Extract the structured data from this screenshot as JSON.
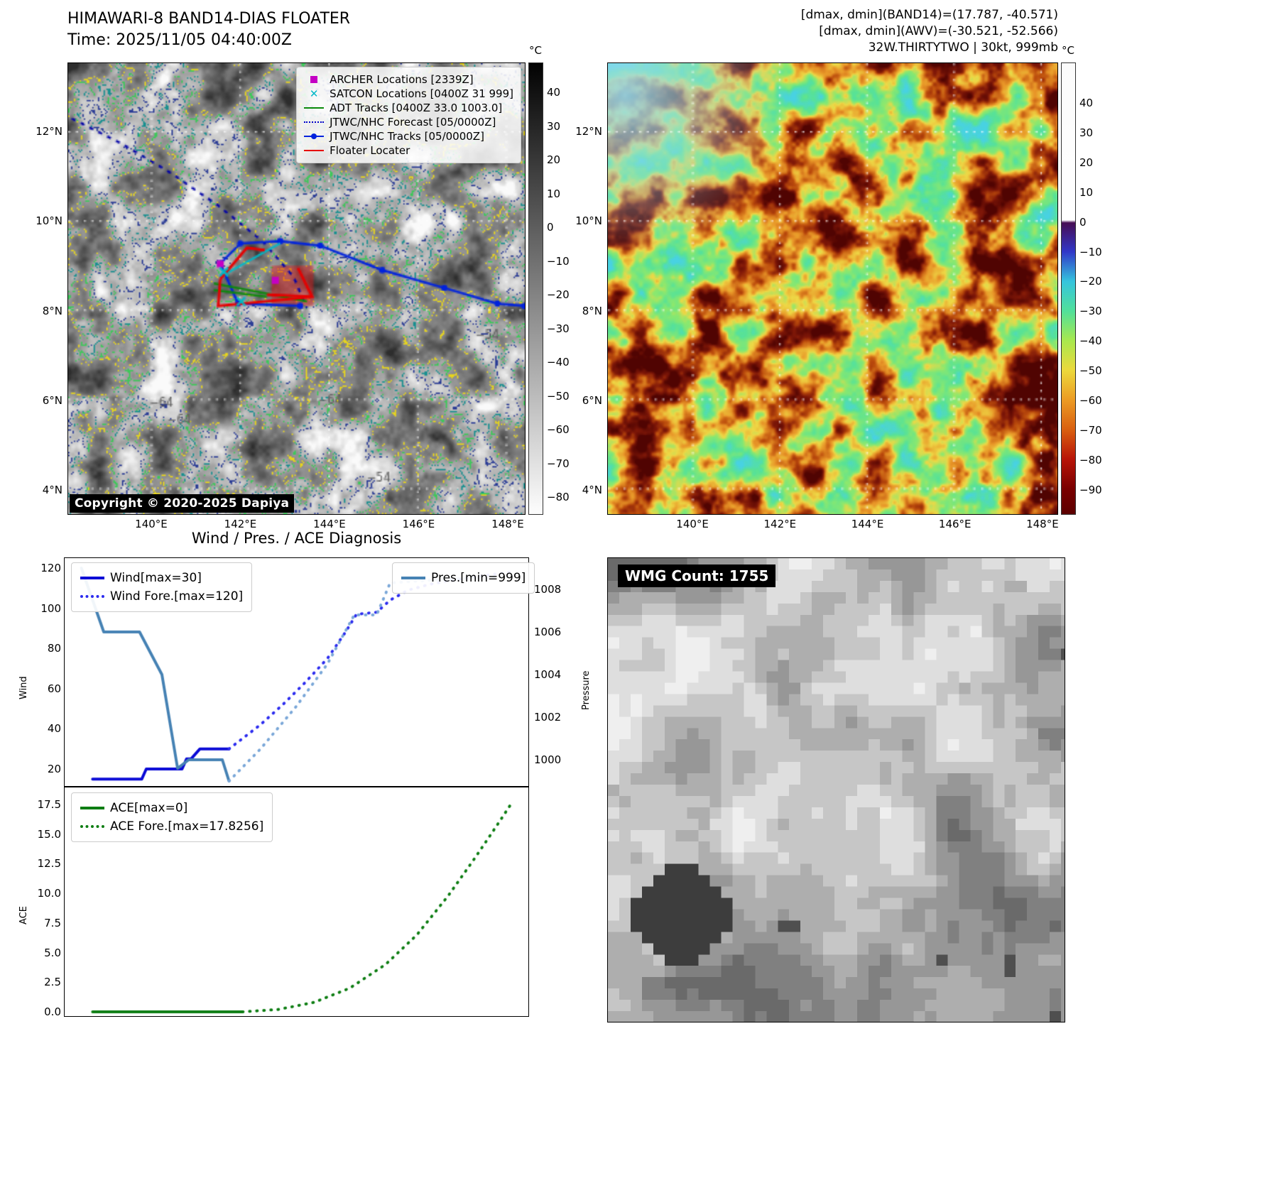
{
  "panel_band14": {
    "title": "HIMAWARI-8 BAND14-DIAS FLOATER",
    "time": "Time: 2025/11/05 04:40:00Z",
    "copyright": "Copyright © 2020-2025 Dapiya",
    "ytick_labels": [
      "12°N",
      "10°N",
      "8°N",
      "6°N",
      "4°N"
    ],
    "xtick_labels": [
      "140°E",
      "142°E",
      "144°E",
      "146°E",
      "148°E"
    ],
    "colorbar": {
      "unit": "°C",
      "ticks": [
        "40",
        "30",
        "20",
        "10",
        "0",
        "−10",
        "−20",
        "−30",
        "−40",
        "−50",
        "−60",
        "−70",
        "−80"
      ]
    },
    "legend": [
      {
        "label": "ARCHER Locations [2339Z]",
        "marker": "square",
        "color": "#c400c4"
      },
      {
        "label": "SATCON Locations [0400Z 31 999]",
        "marker": "x",
        "color": "#00b8c8"
      },
      {
        "label": "ADT Tracks [0400Z 33.0 1003.0]",
        "marker": "line",
        "color": "#0a8a0a"
      },
      {
        "label": "JTWC/NHC Forecast [05/0000Z]",
        "marker": "dotted",
        "color": "#0000c8"
      },
      {
        "label": "JTWC/NHC Tracks [05/0000Z]",
        "marker": "line-dot",
        "color": "#0022dd"
      },
      {
        "label": "Floater Locater",
        "marker": "line",
        "color": "#e60000"
      }
    ],
    "map_labels": [
      {
        "text": "−64",
        "lon": 139.95,
        "lat": 5.85
      },
      {
        "text": "−64",
        "lon": 140.35,
        "lat": 5.45
      },
      {
        "text": "−54",
        "lon": 147.3,
        "lat": 7.35
      },
      {
        "text": "−54",
        "lon": 144.85,
        "lat": 4.15
      },
      {
        "text": "−64",
        "lon": 143.75,
        "lat": 5.9
      }
    ],
    "overlays": {
      "jtwc_forecast": {
        "color": "#0000a8",
        "style": "dashed",
        "points": [
          [
            138.2,
            12.3
          ],
          [
            139.3,
            11.75
          ],
          [
            140.4,
            11.1
          ],
          [
            141.5,
            10.35
          ],
          [
            142.5,
            9.55
          ],
          [
            143.2,
            8.75
          ],
          [
            143.5,
            8.05
          ]
        ]
      },
      "jtwc_track": {
        "color": "#0022dd",
        "style": "solid-dots",
        "points": [
          [
            148.4,
            8.1
          ],
          [
            147.8,
            8.15
          ],
          [
            146.6,
            8.5
          ],
          [
            145.2,
            8.9
          ],
          [
            143.8,
            9.45
          ],
          [
            142.9,
            9.55
          ],
          [
            142.0,
            9.5
          ],
          [
            141.55,
            9.05
          ],
          [
            141.95,
            8.15
          ],
          [
            143.35,
            8.1
          ]
        ]
      },
      "adt_tracks": {
        "color": "#0a8a0a",
        "style": "solid",
        "lines": [
          [
            [
              141.4,
              8.6
            ],
            [
              143.5,
              8.2
            ]
          ],
          [
            [
              141.4,
              8.45
            ],
            [
              142.6,
              8.3
            ]
          ]
        ]
      },
      "satcon_line": {
        "color": "#00b8c8",
        "style": "solid",
        "points": [
          [
            141.55,
            8.75
          ],
          [
            142.9,
            9.5
          ]
        ]
      },
      "floater": {
        "color": "#e60000",
        "style": "solid",
        "lines": [
          [
            [
              141.55,
              8.7
            ],
            [
              141.5,
              8.1
            ],
            [
              143.6,
              8.3
            ]
          ],
          [
            [
              141.55,
              8.7
            ],
            [
              142.15,
              9.4
            ],
            [
              142.55,
              9.35
            ]
          ],
          [
            [
              143.3,
              8.95
            ],
            [
              143.62,
              8.3
            ],
            [
              142.6,
              8.35
            ]
          ]
        ],
        "fill_rect": [
          142.7,
          9.0,
          143.65,
          8.1
        ]
      },
      "archer_points": {
        "color": "#c400c4",
        "points": [
          [
            141.55,
            9.04
          ],
          [
            142.79,
            8.67
          ]
        ]
      },
      "satcon_points": {
        "color": "#00b8c8",
        "points": [
          [
            141.63,
            8.86
          ],
          [
            142.02,
            8.2
          ]
        ]
      }
    }
  },
  "panel_awv": {
    "header_lines": [
      "[dmax, dmin](BAND14)=(17.787, -40.571)",
      "[dmax, dmin](AWV)=(-30.521, -52.566)",
      "32W.THIRTYTWO | 30kt, 999mb"
    ],
    "ytick_labels": [
      "12°N",
      "10°N",
      "8°N",
      "6°N",
      "4°N"
    ],
    "xtick_labels": [
      "140°E",
      "142°E",
      "144°E",
      "146°E",
      "148°E"
    ],
    "colorbar": {
      "unit": "°C",
      "ticks": [
        "40",
        "30",
        "20",
        "10",
        "0",
        "−10",
        "−20",
        "−30",
        "−40",
        "−50",
        "−60",
        "−70",
        "−80",
        "−90"
      ]
    }
  },
  "diagnosis": {
    "title": "Wind / Pres. / ACE Diagnosis",
    "ylabel_wind": "Wind",
    "ylabel_pressure": "Pressure",
    "ylabel_ace": "ACE",
    "wind_yticks": [
      "120",
      "100",
      "80",
      "60",
      "40",
      "20"
    ],
    "pressure_yticks": [
      "1008",
      "1006",
      "1004",
      "1002",
      "1000"
    ],
    "ace_yticks": [
      "17.5",
      "15.0",
      "12.5",
      "10.0",
      "7.5",
      "5.0",
      "2.5",
      "0.0"
    ],
    "legend_wind": [
      {
        "label": "Wind[max=30]",
        "style": "solid",
        "color": "#0a0ad6"
      },
      {
        "label": "Wind Fore.[max=120]",
        "style": "dotted",
        "color": "#2b2bef"
      }
    ],
    "legend_pres": [
      {
        "label": "Pres.[min=999]",
        "style": "solid",
        "color": "#4682b4"
      }
    ],
    "legend_ace": [
      {
        "label": "ACE[max=0]",
        "style": "solid",
        "color": "#0d7d12"
      },
      {
        "label": "ACE Fore.[max=17.8256]",
        "style": "dotted",
        "color": "#0d7d12"
      }
    ]
  },
  "panel_wmg": {
    "label": "WMG Count: 1755"
  },
  "chart_data": [
    {
      "type": "line",
      "title": "Wind / Pres. / ACE Diagnosis (upper panel)",
      "ylabel_left": "Wind",
      "ylabel_right": "Pressure",
      "ylim_left": [
        11,
        125
      ],
      "ylim_right": [
        998.7,
        1009.5
      ],
      "yticks_left": [
        120,
        100,
        80,
        60,
        40,
        20
      ],
      "yticks_right": [
        1008,
        1006,
        1004,
        1002,
        1000
      ],
      "x_is_fraction_of_width": true,
      "series": [
        {
          "name": "Wind[max=30]",
          "axis": "left",
          "color": "#0a0ad6",
          "style": "solid",
          "points": [
            [
              0.045,
              15
            ],
            [
              0.155,
              15
            ],
            [
              0.165,
              20
            ],
            [
              0.245,
              20
            ],
            [
              0.255,
              25
            ],
            [
              0.265,
              25
            ],
            [
              0.285,
              30
            ],
            [
              0.35,
              30
            ]
          ]
        },
        {
          "name": "Wind Fore.[max=120]",
          "axis": "left",
          "color": "#2b2bef",
          "style": "dotted",
          "points": [
            [
              0.35,
              30
            ],
            [
              0.42,
              42
            ],
            [
              0.47,
              52
            ],
            [
              0.52,
              63
            ],
            [
              0.57,
              75
            ],
            [
              0.61,
              88
            ],
            [
              0.635,
              97
            ],
            [
              0.68,
              98
            ],
            [
              0.71,
              104
            ],
            [
              0.75,
              109
            ],
            [
              0.8,
              112
            ],
            [
              0.88,
              115
            ],
            [
              0.98,
              118
            ]
          ]
        },
        {
          "name": "Pres.[min=999]",
          "axis": "right",
          "color": "#4682b4",
          "style": "solid",
          "points": [
            [
              0.02,
              1009
            ],
            [
              0.07,
              1006
            ],
            [
              0.15,
              1006
            ],
            [
              0.2,
              1004
            ],
            [
              0.235,
              999.6
            ],
            [
              0.26,
              1000
            ],
            [
              0.335,
              1000
            ],
            [
              0.35,
              999
            ]
          ]
        },
        {
          "name": "Pres. forecast (dotted)",
          "axis": "right",
          "color": "#7aa7d8",
          "style": "dotted",
          "points": [
            [
              0.35,
              999
            ],
            [
              0.42,
              1000.5
            ],
            [
              0.5,
              1002.5
            ],
            [
              0.57,
              1004.5
            ],
            [
              0.63,
              1006.8
            ],
            [
              0.68,
              1006.8
            ],
            [
              0.71,
              1008.3
            ],
            [
              0.85,
              1008.5
            ],
            [
              0.98,
              1008.6
            ]
          ]
        }
      ]
    },
    {
      "type": "line",
      "title": "ACE (lower panel)",
      "ylabel_left": "ACE",
      "ylim_left": [
        -0.5,
        19.4
      ],
      "yticks_left": [
        17.5,
        15.0,
        12.5,
        10.0,
        7.5,
        5.0,
        2.5,
        0.0
      ],
      "x_is_fraction_of_width": true,
      "series": [
        {
          "name": "ACE[max=0]",
          "color": "#0d7d12",
          "style": "solid",
          "points": [
            [
              0.045,
              0
            ],
            [
              0.38,
              0
            ]
          ]
        },
        {
          "name": "ACE Fore.[max=17.8256]",
          "color": "#0d7d12",
          "style": "dotted",
          "points": [
            [
              0.38,
              0
            ],
            [
              0.46,
              0.2
            ],
            [
              0.54,
              0.8
            ],
            [
              0.62,
              2.0
            ],
            [
              0.7,
              4.0
            ],
            [
              0.77,
              6.5
            ],
            [
              0.84,
              9.8
            ],
            [
              0.9,
              13.0
            ],
            [
              0.95,
              15.8
            ],
            [
              0.985,
              17.8
            ]
          ]
        }
      ]
    }
  ]
}
